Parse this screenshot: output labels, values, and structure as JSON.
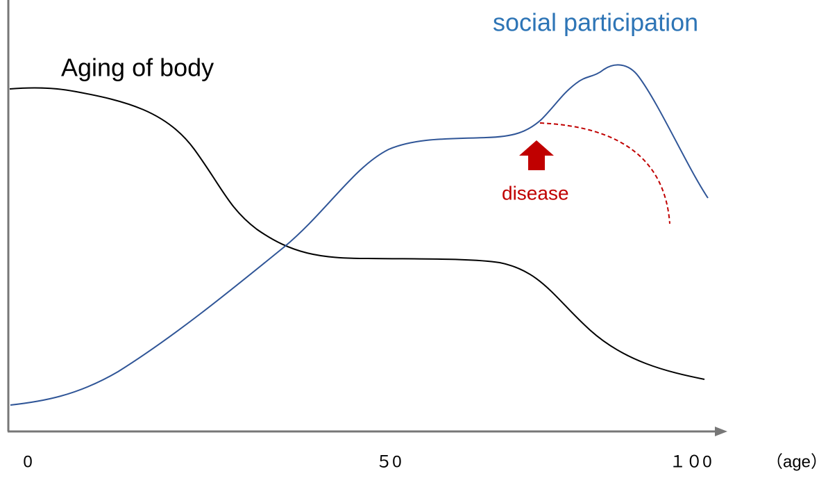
{
  "labels": {
    "body": "Aging of body",
    "social": "social participation",
    "disease": "disease"
  },
  "axis": {
    "ticks": [
      "0",
      "５0",
      "１０0"
    ],
    "unit": "（age）"
  }
}
